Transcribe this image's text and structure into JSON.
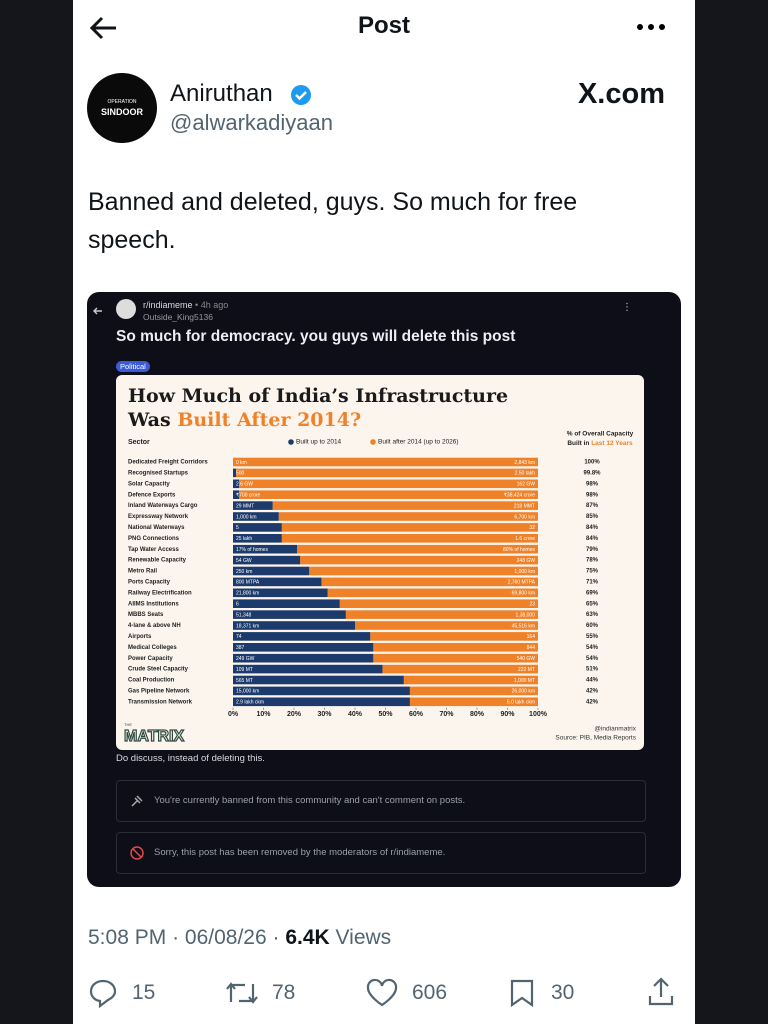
{
  "header": {
    "title": "Post"
  },
  "author": {
    "name": "Aniruthan",
    "handle": "@alwarkadiyaan",
    "avatar_top": "OPERATION",
    "avatar_main": "SINDOOR",
    "site": "X.com"
  },
  "post": {
    "text": "Banned and deleted, guys. So much for free speech.",
    "time": "5:08 PM",
    "separator": "·",
    "date": "06/08/26",
    "views": "6.4K",
    "views_label": "Views"
  },
  "actions": {
    "replies": 15,
    "reposts": 78,
    "likes": 606,
    "bookmarks": 30
  },
  "embed": {
    "subreddit": "r/indiameme",
    "age": "• 4h ago",
    "user": "Outside_King5136",
    "title": "So much for democracy. you guys will delete this post",
    "flair": "Political",
    "caption": "Do discuss, instead of deleting this.",
    "notices": [
      "You're currently banned from this community and can't comment on posts.",
      "Sorry, this post has been removed by the moderators of r/indiameme."
    ],
    "chart": {
      "type": "bar",
      "title_line1": "How Much of India’s Infrastructure",
      "title_prefix": "Was ",
      "title_highlight": "Built After 2014?",
      "column_header": "Sector",
      "capacity_header": "% of Overall Capacity",
      "capacity_subheader": "Built in ",
      "capacity_highlight": "Last 12 Years",
      "categories": [
        "Dedicated Freight Corridors",
        "Recognised Startups",
        "Solar Capacity",
        "Defence Exports",
        "Inland Waterways Cargo",
        "Expressway Network",
        "National Waterways",
        "PNG Connections",
        "Tap Water Access",
        "Renewable Capacity",
        "Metro Rail",
        "Ports Capacity",
        "Railway Electrification",
        "AIIMS Institutions",
        "MBBS Seats",
        "4-lane & above NH",
        "Airports",
        "Medical Colleges",
        "Power Capacity",
        "Crude Steel Capacity",
        "Coal Production",
        "Gas Pipeline Network",
        "Transmission Network"
      ],
      "series": [
        {
          "name": "Built up to 2014",
          "color": "#1c3a6b",
          "values": [
            0,
            1,
            2,
            2,
            13,
            15,
            16,
            16,
            21,
            22,
            25,
            29,
            31,
            35,
            37,
            40,
            45,
            46,
            46,
            49,
            56,
            58,
            58
          ],
          "bar_labels": [
            "0 km",
            "500",
            "2.6 GW",
            "₹700 crore",
            "29 MMT",
            "1,000 km",
            "5",
            "25 lakh",
            "17% of homes",
            "54 GW",
            "250 km",
            "800 MTPA",
            "21,800 km",
            "6",
            "51,348",
            "18,371 km",
            "74",
            "387",
            "249 GW",
            "109 MT",
            "565 MT",
            "15,000 km",
            "2.9 lakh ckm"
          ]
        },
        {
          "name": "Built after 2014 (up to 2026)",
          "color": "#ef8229",
          "bar_labels": [
            "2,843 km",
            "2.50 lakh",
            "162 GW",
            "₹38,424 crore",
            "218 MMT",
            "6,700 km",
            "32",
            "1.6 crore",
            "80% of homes",
            "248 GW",
            "1,000 km",
            "2,760 MTPA",
            "69,800 km",
            "23",
            "1,38,000",
            "45,516 km",
            "164",
            "844",
            "540 GW",
            "222 MT",
            "1,000 MT",
            "26,000 km",
            "5.0 lakh ckm"
          ]
        }
      ],
      "capacity_labels": [
        "100%",
        "99.8%",
        "98%",
        "98%",
        "87%",
        "85%",
        "84%",
        "84%",
        "79%",
        "78%",
        "75%",
        "71%",
        "69%",
        "65%",
        "63%",
        "60%",
        "55%",
        "54%",
        "54%",
        "51%",
        "44%",
        "42%",
        "42%"
      ],
      "xlim": [
        0,
        100
      ],
      "xticks": [
        {
          "value": 0,
          "label": "0%"
        },
        {
          "value": 10,
          "label": "10%"
        },
        {
          "value": 20,
          "label": "20%"
        },
        {
          "value": 30,
          "label": "30%"
        },
        {
          "value": 40,
          "label": "40%"
        },
        {
          "value": 50,
          "label": "50%"
        },
        {
          "value": 60,
          "label": "60%"
        },
        {
          "value": 70,
          "label": "70%"
        },
        {
          "value": 80,
          "label": "80%"
        },
        {
          "value": 90,
          "label": "90%"
        },
        {
          "value": 100,
          "label": "100%"
        }
      ],
      "brand_prefix": "THE",
      "brand": "MATRIX",
      "credit": "@indianmatrix",
      "source": "Source: PIB, Media Reports"
    }
  }
}
